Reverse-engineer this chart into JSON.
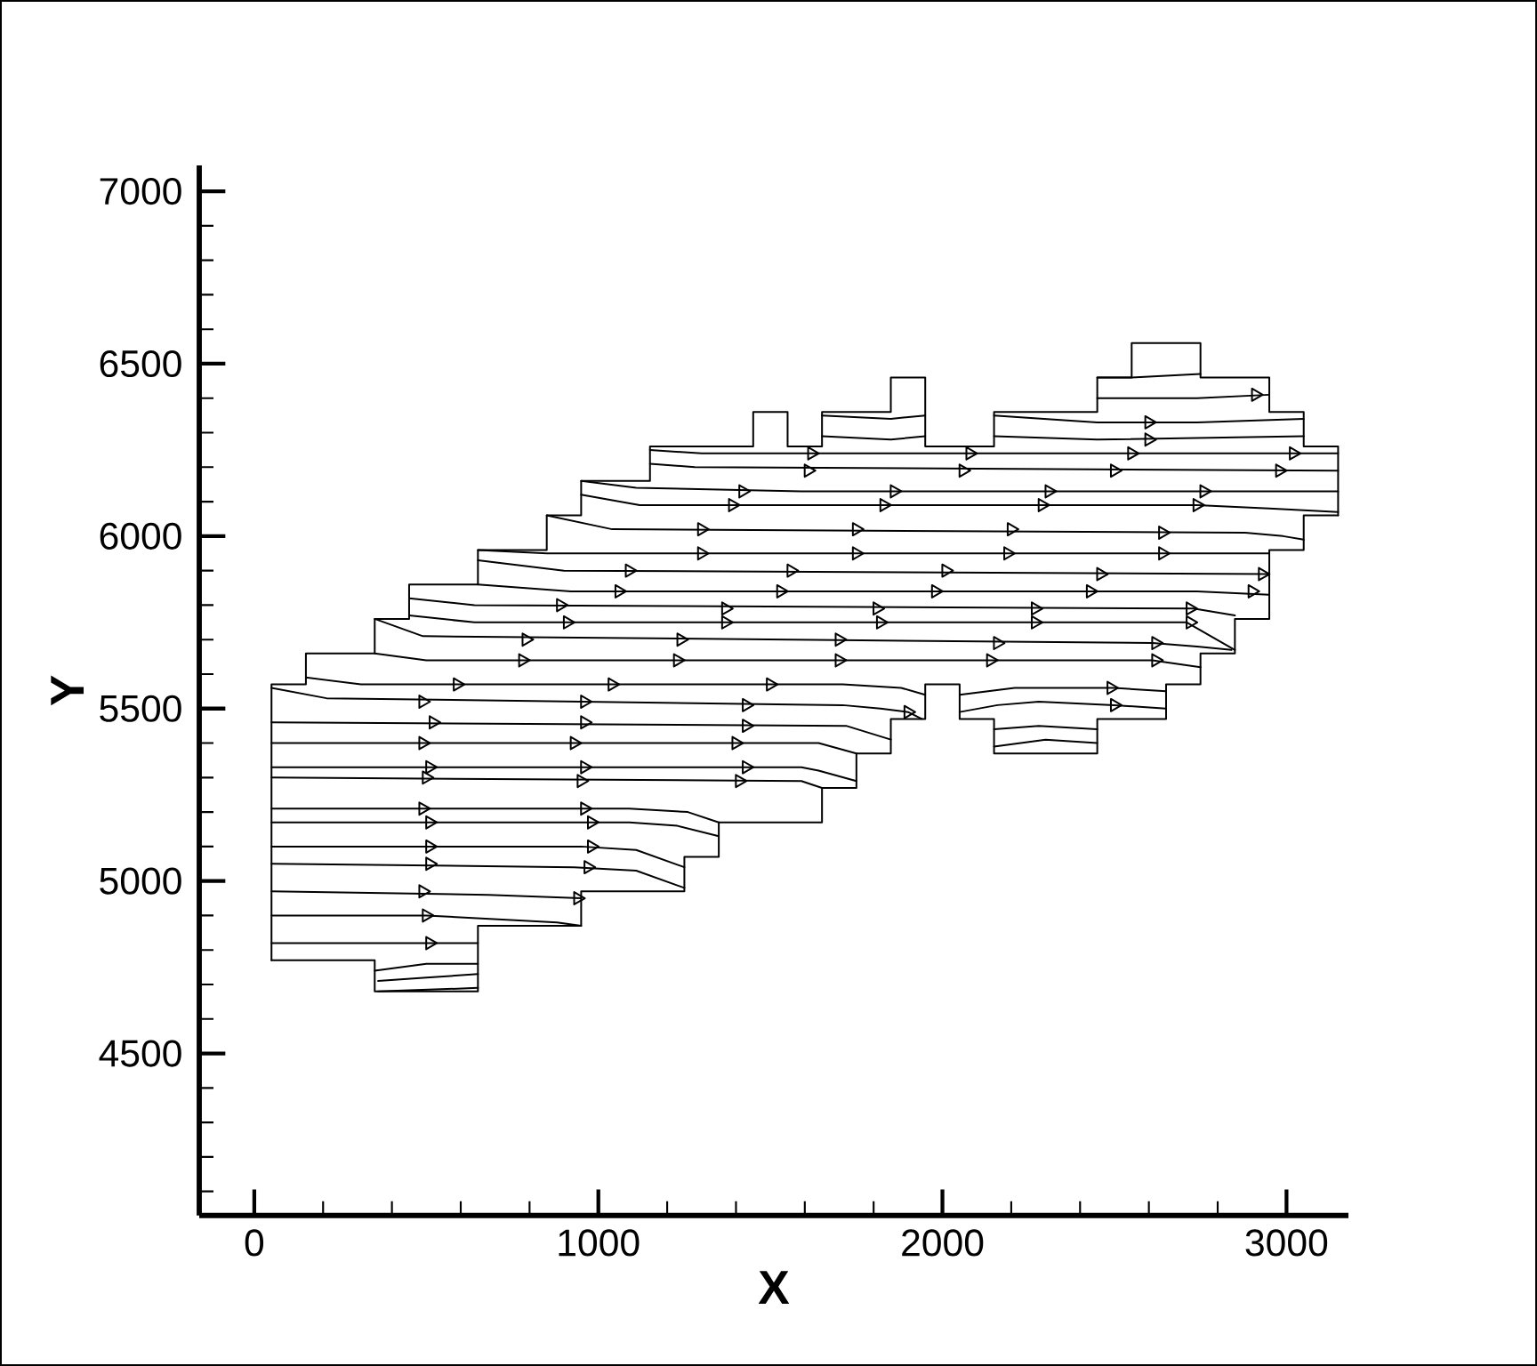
{
  "chart_data": {
    "type": "line",
    "xlabel": "X",
    "ylabel": "Y",
    "xlim": [
      -160,
      3180
    ],
    "ylim": [
      4030,
      7075
    ],
    "xticks": [
      0,
      {
        "value": 200,
        "label": null
      },
      {
        "value": 400,
        "label": null
      },
      {
        "value": 600,
        "label": null
      },
      {
        "value": 800,
        "label": null
      },
      1000,
      {
        "value": 1200,
        "label": null
      },
      {
        "value": 1400,
        "label": null
      },
      {
        "value": 1600,
        "label": null
      },
      {
        "value": 1800,
        "label": null
      },
      2000,
      {
        "value": 2200,
        "label": null
      },
      {
        "value": 2400,
        "label": null
      },
      {
        "value": 2600,
        "label": null
      },
      {
        "value": 2800,
        "label": null
      },
      3000
    ],
    "yticks": [
      {
        "value": 4100,
        "label": null
      },
      {
        "value": 4200,
        "label": null
      },
      {
        "value": 4300,
        "label": null
      },
      {
        "value": 4400,
        "label": null
      },
      4500,
      {
        "value": 4600,
        "label": null
      },
      {
        "value": 4700,
        "label": null
      },
      {
        "value": 4800,
        "label": null
      },
      {
        "value": 4900,
        "label": null
      },
      5000,
      {
        "value": 5100,
        "label": null
      },
      {
        "value": 5200,
        "label": null
      },
      {
        "value": 5300,
        "label": null
      },
      {
        "value": 5400,
        "label": null
      },
      5500,
      {
        "value": 5600,
        "label": null
      },
      {
        "value": 5700,
        "label": null
      },
      {
        "value": 5800,
        "label": null
      },
      {
        "value": 5900,
        "label": null
      },
      6000,
      {
        "value": 6100,
        "label": null
      },
      {
        "value": 6200,
        "label": null
      },
      {
        "value": 6300,
        "label": null
      },
      {
        "value": 6400,
        "label": null
      },
      6500,
      {
        "value": 6600,
        "label": null
      },
      {
        "value": 6700,
        "label": null
      },
      {
        "value": 6800,
        "label": null
      },
      {
        "value": 6900,
        "label": null
      },
      7000
    ],
    "series": [
      {
        "type": "step",
        "color": "#000000",
        "x": [
          50,
          50,
          150,
          350,
          450,
          650,
          850,
          950,
          1150,
          1450,
          1550,
          1650,
          1850,
          1950,
          2150,
          2450,
          2550,
          2750,
          2950,
          3050,
          3150
        ],
        "values": [
          4770,
          5570,
          5660,
          5760,
          5860,
          5960,
          6060,
          6160,
          6260,
          6360,
          6260,
          6360,
          6460,
          6260,
          6360,
          6460,
          6560,
          6460,
          6360,
          6260,
          6060
        ]
      },
      {
        "color": "#000000",
        "x": [
          2450,
          2550,
          2750
        ],
        "values": [
          6460,
          6460,
          6470
        ]
      },
      {
        "color": "#000000",
        "x": [
          2450,
          2740,
          2950
        ],
        "values": [
          6400,
          6400,
          6410
        ]
      },
      {
        "color": "#000000",
        "x": [
          2150,
          2450,
          2740,
          3050
        ],
        "values": [
          6350,
          6330,
          6330,
          6340
        ]
      },
      {
        "color": "#000000",
        "x": [
          2150,
          2450,
          3050
        ],
        "values": [
          6290,
          6280,
          6290
        ]
      },
      {
        "color": "#000000",
        "x": [
          1650,
          1850,
          1950
        ],
        "values": [
          6350,
          6340,
          6350
        ]
      },
      {
        "color": "#000000",
        "x": [
          1650,
          1850,
          1950
        ],
        "values": [
          6290,
          6280,
          6290
        ]
      },
      {
        "color": "#000000",
        "x": [
          1150,
          1300,
          1590,
          3150
        ],
        "values": [
          6250,
          6240,
          6240,
          6240
        ]
      },
      {
        "color": "#000000",
        "x": [
          1150,
          1280,
          3150
        ],
        "values": [
          6210,
          6200,
          6190
        ]
      },
      {
        "color": "#000000",
        "x": [
          950,
          1110,
          1590,
          3150
        ],
        "values": [
          6160,
          6140,
          6130,
          6130
        ]
      },
      {
        "color": "#000000",
        "x": [
          950,
          1120,
          2740,
          2950,
          3150
        ],
        "values": [
          6120,
          6090,
          6090,
          6080,
          6070
        ]
      },
      {
        "color": "#000000",
        "x": [
          850,
          1040,
          2880,
          2990,
          3050
        ],
        "values": [
          6060,
          6020,
          6010,
          6000,
          5990
        ]
      },
      {
        "color": "#000000",
        "x": [
          650,
          850,
          2950
        ],
        "values": [
          5960,
          5950,
          5950
        ]
      },
      {
        "color": "#000000",
        "x": [
          650,
          900,
          2950
        ],
        "values": [
          5930,
          5900,
          5890
        ]
      },
      {
        "color": "#000000",
        "x": [
          650,
          920,
          2740,
          2950
        ],
        "values": [
          5860,
          5840,
          5840,
          5830
        ]
      },
      {
        "color": "#000000",
        "x": [
          450,
          640,
          2730,
          2850
        ],
        "values": [
          5820,
          5800,
          5790,
          5770
        ]
      },
      {
        "color": "#000000",
        "x": [
          450,
          640,
          2710,
          2850
        ],
        "values": [
          5770,
          5750,
          5750,
          5670
        ]
      },
      {
        "color": "#000000",
        "x": [
          350,
          490,
          2610,
          2740,
          2840
        ],
        "values": [
          5760,
          5710,
          5690,
          5680,
          5670
        ]
      },
      {
        "color": "#000000",
        "x": [
          350,
          500,
          2610,
          2750
        ],
        "values": [
          5660,
          5640,
          5640,
          5620
        ]
      },
      {
        "color": "#000000",
        "x": [
          150,
          310,
          1710,
          1880,
          1950
        ],
        "values": [
          5590,
          5570,
          5570,
          5560,
          5540
        ]
      },
      {
        "color": "#000000",
        "x": [
          50,
          210,
          1710,
          1820,
          1900,
          1940
        ],
        "values": [
          5560,
          5530,
          5510,
          5500,
          5490,
          5470
        ]
      },
      {
        "color": "#000000",
        "x": [
          50,
          1720,
          1850
        ],
        "values": [
          5460,
          5450,
          5410
        ]
      },
      {
        "color": "#000000",
        "x": [
          50,
          1640,
          1750
        ],
        "values": [
          5400,
          5400,
          5370
        ]
      },
      {
        "color": "#000000",
        "x": [
          50,
          1590,
          1640,
          1750
        ],
        "values": [
          5330,
          5330,
          5320,
          5290
        ]
      },
      {
        "color": "#000000",
        "x": [
          50,
          1590,
          1650
        ],
        "values": [
          5300,
          5290,
          5270
        ]
      },
      {
        "color": "#000000",
        "x": [
          50,
          1090,
          1260,
          1350
        ],
        "values": [
          5210,
          5210,
          5200,
          5170
        ]
      },
      {
        "color": "#000000",
        "x": [
          50,
          1090,
          1230,
          1350
        ],
        "values": [
          5170,
          5170,
          5160,
          5130
        ]
      },
      {
        "color": "#000000",
        "x": [
          50,
          950,
          1110,
          1250
        ],
        "values": [
          5100,
          5100,
          5090,
          5040
        ]
      },
      {
        "color": "#000000",
        "x": [
          50,
          930,
          1110,
          1250
        ],
        "values": [
          5050,
          5040,
          5030,
          4980
        ]
      },
      {
        "color": "#000000",
        "x": [
          50,
          680,
          950
        ],
        "values": [
          4970,
          4960,
          4950
        ]
      },
      {
        "color": "#000000",
        "x": [
          50,
          500,
          880,
          950
        ],
        "values": [
          4900,
          4900,
          4880,
          4870
        ]
      },
      {
        "color": "#000000",
        "x": [
          50,
          650
        ],
        "values": [
          4820,
          4820
        ]
      },
      {
        "color": "#000000",
        "x": [
          350,
          500,
          650
        ],
        "values": [
          4740,
          4760,
          4760
        ]
      },
      {
        "color": "#000000",
        "x": [
          360,
          500,
          650
        ],
        "values": [
          4710,
          4720,
          4730
        ]
      },
      {
        "color": "#000000",
        "x": [
          360,
          650
        ],
        "values": [
          4680,
          4690
        ]
      },
      {
        "color": "#000000",
        "x": [
          2050,
          2210,
          2350,
          2500,
          2650
        ],
        "values": [
          5540,
          5560,
          5560,
          5560,
          5550
        ]
      },
      {
        "color": "#000000",
        "x": [
          2050,
          2160,
          2280,
          2500,
          2650
        ],
        "values": [
          5490,
          5510,
          5520,
          5510,
          5500
        ]
      },
      {
        "color": "#000000",
        "x": [
          2150,
          2280,
          2450
        ],
        "values": [
          5440,
          5450,
          5440
        ]
      },
      {
        "color": "#000000",
        "x": [
          2150,
          2300,
          2450
        ],
        "values": [
          5390,
          5410,
          5400
        ]
      },
      {
        "type": "scatter",
        "marker": "triangle",
        "color": "#000000",
        "x": [
          2910,
          2600,
          2600,
          1620,
          2080,
          2550,
          3020,
          1610,
          2060,
          2500,
          2980,
          1420,
          1860,
          2310,
          2760,
          1390,
          1830,
          2290,
          2740,
          1300,
          1750,
          2200,
          2640,
          1300,
          1750,
          2190,
          2640,
          1090,
          1560,
          2010,
          2460,
          2930,
          1060,
          1530,
          1980,
          2430,
          2900,
          890,
          1370,
          1810,
          2270,
          2720,
          910,
          1370,
          1820,
          2270,
          2720,
          790,
          1240,
          1700,
          2160,
          2620,
          780,
          1230,
          1700,
          2140,
          2620,
          590,
          1040,
          1500,
          490,
          960,
          1430,
          1900,
          520,
          960,
          1430,
          490,
          930,
          1400,
          510,
          960,
          1430,
          500,
          950,
          1410,
          490,
          960,
          510,
          980,
          510,
          980,
          510,
          970,
          490,
          940,
          500,
          510,
          2490,
          2500
        ],
        "values": [
          6410,
          6330,
          6280,
          6240,
          6240,
          6240,
          6240,
          6190,
          6190,
          6190,
          6190,
          6130,
          6130,
          6130,
          6130,
          6090,
          6090,
          6090,
          6090,
          6020,
          6020,
          6020,
          6010,
          5950,
          5950,
          5950,
          5950,
          5900,
          5900,
          5900,
          5890,
          5890,
          5840,
          5840,
          5840,
          5840,
          5840,
          5800,
          5790,
          5790,
          5790,
          5790,
          5750,
          5750,
          5750,
          5750,
          5750,
          5700,
          5700,
          5700,
          5690,
          5690,
          5640,
          5640,
          5640,
          5640,
          5640,
          5570,
          5570,
          5570,
          5520,
          5520,
          5510,
          5490,
          5460,
          5460,
          5450,
          5400,
          5400,
          5400,
          5330,
          5330,
          5330,
          5300,
          5290,
          5290,
          5210,
          5210,
          5170,
          5170,
          5100,
          5100,
          5050,
          5040,
          4970,
          4950,
          4900,
          4820,
          5560,
          5510
        ]
      },
      {
        "type": "step",
        "color": "#000000",
        "x": [
          50,
          350,
          650,
          950,
          1250,
          1350,
          1650,
          1750,
          1850,
          1950,
          2050,
          2150,
          2450,
          2650,
          2750,
          2850,
          2950,
          3050,
          3150
        ],
        "values": [
          4770,
          4680,
          4870,
          4970,
          5070,
          5170,
          5270,
          5370,
          5470,
          5570,
          5470,
          5370,
          5470,
          5570,
          5660,
          5760,
          5960,
          6060,
          6060
        ]
      }
    ]
  }
}
